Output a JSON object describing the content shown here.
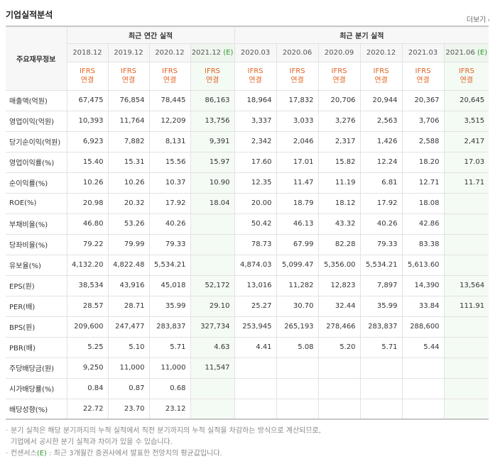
{
  "header": {
    "title": "기업실적분석",
    "more_label": "더보기",
    "more_arrow": "›"
  },
  "table": {
    "main_label": "주요재무정보",
    "annual_label": "최근 연간 실적",
    "quarter_label": "최근 분기 실적",
    "est_mark": "(E)",
    "annual_periods": [
      "2018.12",
      "2019.12",
      "2020.12",
      "2021.12"
    ],
    "quarter_periods": [
      "2020.03",
      "2020.06",
      "2020.09",
      "2020.12",
      "2021.03",
      "2021.06"
    ],
    "ifrs": "IFRS",
    "conn": "연결",
    "rows": [
      {
        "label": "매출액(억원)",
        "values": [
          "67,475",
          "76,854",
          "78,445",
          "86,163",
          "18,964",
          "17,832",
          "20,706",
          "20,944",
          "20,367",
          "20,645"
        ]
      },
      {
        "label": "영업이익(억원)",
        "values": [
          "10,393",
          "11,764",
          "12,209",
          "13,756",
          "3,337",
          "3,033",
          "3,276",
          "2,563",
          "3,706",
          "3,515"
        ]
      },
      {
        "label": "당기순이익(억원)",
        "values": [
          "6,923",
          "7,882",
          "8,131",
          "9,391",
          "2,342",
          "2,046",
          "2,317",
          "1,426",
          "2,588",
          "2,417"
        ]
      },
      {
        "label": "영업이익률(%)",
        "values": [
          "15.40",
          "15.31",
          "15.56",
          "15.97",
          "17.60",
          "17.01",
          "15.82",
          "12.24",
          "18.20",
          "17.03"
        ]
      },
      {
        "label": "순이익률(%)",
        "values": [
          "10.26",
          "10.26",
          "10.37",
          "10.90",
          "12.35",
          "11.47",
          "11.19",
          "6.81",
          "12.71",
          "11.71"
        ]
      },
      {
        "label": "ROE(%)",
        "values": [
          "20.98",
          "20.32",
          "17.92",
          "18.04",
          "20.00",
          "18.79",
          "18.12",
          "17.92",
          "18.08",
          ""
        ]
      },
      {
        "label": "부채비율(%)",
        "values": [
          "46.80",
          "53.26",
          "40.26",
          "",
          "50.42",
          "46.13",
          "43.32",
          "40.26",
          "42.86",
          ""
        ]
      },
      {
        "label": "당좌비율(%)",
        "values": [
          "79.22",
          "79.99",
          "79.33",
          "",
          "78.73",
          "67.99",
          "82.28",
          "79.33",
          "83.38",
          ""
        ]
      },
      {
        "label": "유보율(%)",
        "values": [
          "4,132.20",
          "4,822.48",
          "5,534.21",
          "",
          "4,874.03",
          "5,099.47",
          "5,356.00",
          "5,534.21",
          "5,613.60",
          ""
        ]
      },
      {
        "label": "EPS(원)",
        "values": [
          "38,534",
          "43,916",
          "45,018",
          "52,172",
          "13,016",
          "11,282",
          "12,823",
          "7,897",
          "14,390",
          "13,564"
        ]
      },
      {
        "label": "PER(배)",
        "values": [
          "28.57",
          "28.71",
          "35.99",
          "29.10",
          "25.27",
          "30.70",
          "32.44",
          "35.99",
          "33.84",
          "111.91"
        ]
      },
      {
        "label": "BPS(원)",
        "values": [
          "209,600",
          "247,477",
          "283,837",
          "327,734",
          "253,945",
          "265,193",
          "278,466",
          "283,837",
          "288,600",
          ""
        ]
      },
      {
        "label": "PBR(배)",
        "values": [
          "5.25",
          "5.10",
          "5.71",
          "4.63",
          "4.41",
          "5.08",
          "5.20",
          "5.71",
          "5.44",
          ""
        ]
      },
      {
        "label": "주당배당금(원)",
        "values": [
          "9,250",
          "11,000",
          "11,000",
          "11,547",
          "",
          "",
          "",
          "",
          "",
          ""
        ]
      },
      {
        "label": "시가배당률(%)",
        "values": [
          "0.84",
          "0.87",
          "0.68",
          "",
          "",
          "",
          "",
          "",
          "",
          ""
        ]
      },
      {
        "label": "배당성향(%)",
        "values": [
          "22.72",
          "23.70",
          "23.12",
          "",
          "",
          "",
          "",
          "",
          "",
          ""
        ]
      }
    ]
  },
  "notes": {
    "bullet": "·",
    "line1": "분기 실적은 해당 분기까지의 누적 실적에서 직전 분기까지의 누적 실적을 차감하는 방식으로 계산되므로,",
    "line2": "기업에서 공시한 분기 실적과 차이가 있을 수 있습니다.",
    "line3_pre": "컨센서스",
    "line3_mark": "(E)",
    "line3_post": " : 최근 3개월간 증권사에서 발표한 전망치의 평균값입니다."
  }
}
